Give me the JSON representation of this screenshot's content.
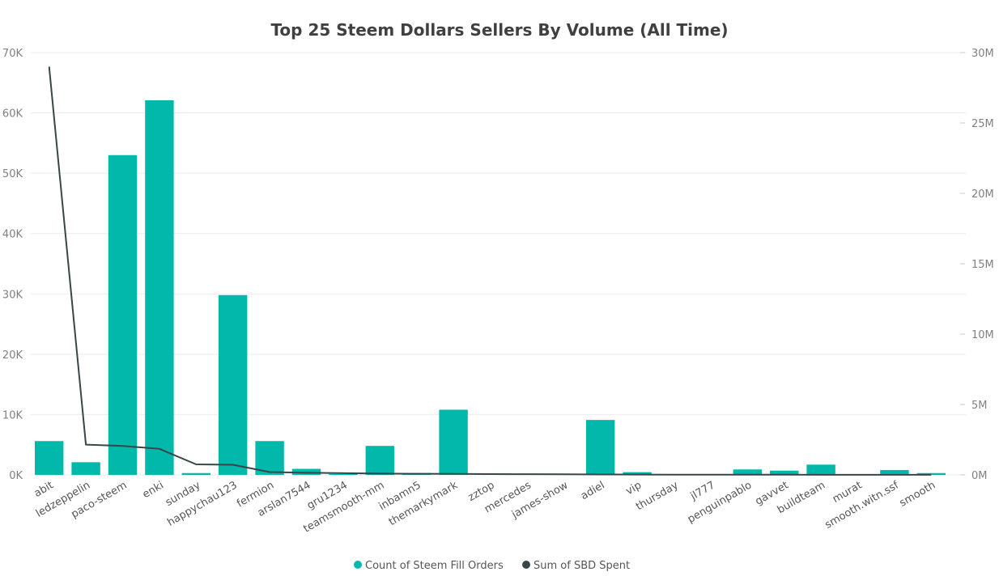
{
  "chart_data": {
    "type": "bar",
    "title": "Top 25 Steem Dollars Sellers By Volume (All Time)",
    "categories": [
      "abit",
      "ledzeppelin",
      "paco-steem",
      "enki",
      "sunday",
      "happychau123",
      "fermion",
      "arslan7544",
      "gru1234",
      "teamsmooth-mm",
      "inbamn5",
      "themarkymark",
      "zztop",
      "mercedes",
      "james-show",
      "adiel",
      "vip",
      "thursday",
      "jl777",
      "penguinpablo",
      "gavvet",
      "buildteam",
      "murat",
      "smooth.witn.ssf",
      "smooth"
    ],
    "series": [
      {
        "name": "Count of Steem Fill Orders",
        "type": "bar",
        "axis": "left",
        "color": "#01b8aa",
        "values": [
          5600,
          2100,
          53000,
          62100,
          300,
          29800,
          5600,
          1000,
          150,
          4800,
          300,
          10800,
          200,
          150,
          150,
          9100,
          450,
          100,
          100,
          900,
          700,
          1700,
          100,
          800,
          300
        ]
      },
      {
        "name": "Sum of SBD Spent",
        "type": "line",
        "axis": "right",
        "color": "#374649",
        "values": [
          29000000,
          2150000,
          2050000,
          1850000,
          750000,
          720000,
          200000,
          150000,
          120000,
          90000,
          80000,
          70000,
          60000,
          50000,
          40000,
          30000,
          25000,
          20000,
          15000,
          12000,
          10000,
          8000,
          6000,
          5000,
          4000
        ]
      }
    ],
    "y_left": {
      "ylim": [
        0,
        70000
      ],
      "ticks": [
        0,
        10000,
        20000,
        30000,
        40000,
        50000,
        60000,
        70000
      ],
      "tick_labels": [
        "0K",
        "10K",
        "20K",
        "30K",
        "40K",
        "50K",
        "60K",
        "70K"
      ]
    },
    "y_right": {
      "ylim": [
        0,
        30000000
      ],
      "ticks": [
        0,
        5000000,
        10000000,
        15000000,
        20000000,
        25000000,
        30000000
      ],
      "tick_labels": [
        "0M",
        "5M",
        "10M",
        "15M",
        "20M",
        "25M",
        "30M"
      ]
    },
    "xlabel": "",
    "ylabel": "",
    "grid": true,
    "legend_position": "bottom"
  }
}
